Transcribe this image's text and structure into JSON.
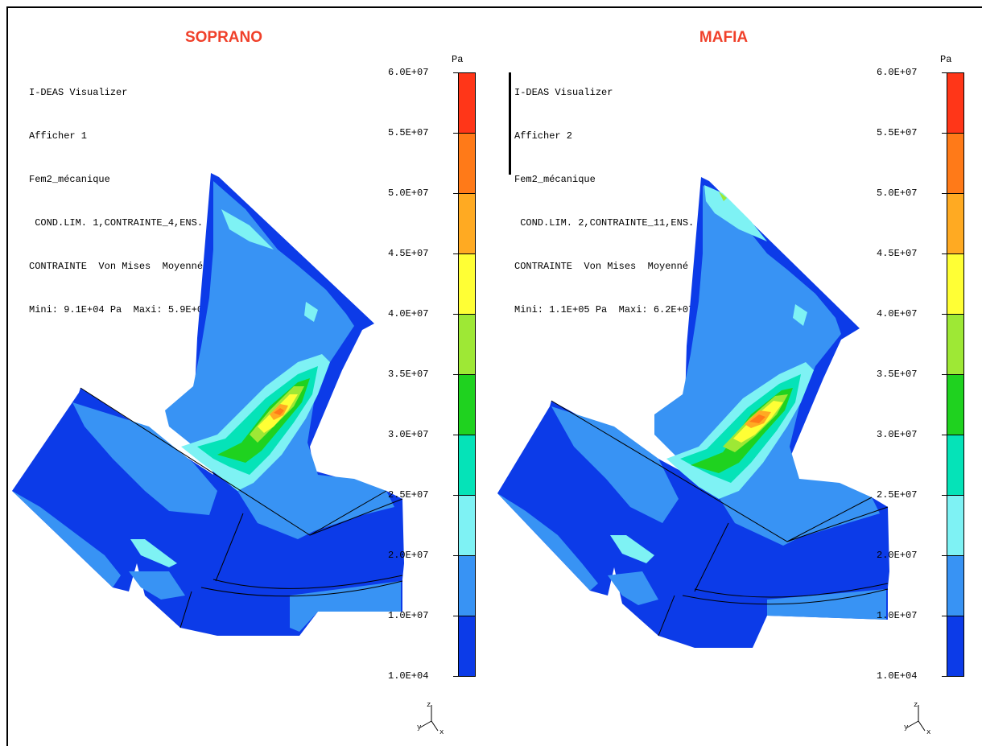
{
  "colors": {
    "title": "#f0402a",
    "contours": [
      "#0c3be8",
      "#3893f4",
      "#7ef2f4",
      "#05e3b8",
      "#1fd21f",
      "#9ee835",
      "#ffff35",
      "#ffaa22",
      "#ff7a18",
      "#ff3618"
    ]
  },
  "legend": {
    "unit": "Pa",
    "ticks": [
      "6.0E+07",
      "5.5E+07",
      "5.0E+07",
      "4.5E+07",
      "4.0E+07",
      "3.5E+07",
      "3.0E+07",
      "2.5E+07",
      "2.0E+07",
      "1.0E+07",
      "1.0E+04"
    ]
  },
  "panels": [
    {
      "title": "SOPRANO",
      "info": [
        "I-DEAS Visualizer",
        "Afficher 1",
        "Fem2_mécanique",
        " COND.LIM. 1,CONTRAINTE_4,ENS. BLOCAGES",
        "CONTRAINTE  Von Mises  Moyenné  Peau sup.",
        "Mini: 9.1E+04 Pa  Maxi: 5.9E+07 Pa"
      ],
      "min_stress": "9.1E+04",
      "max_stress": "5.9E+07",
      "triad": {
        "z": "z",
        "y": "y",
        "x": "x"
      }
    },
    {
      "title": "MAFIA",
      "info": [
        "I-DEAS Visualizer",
        "Afficher 2",
        "Fem2_mécanique",
        " COND.LIM. 2,CONTRAINTE_11,ENS. BLOCAGES",
        "CONTRAINTE  Von Mises  Moyenné  Peau sup.",
        "Mini: 1.1E+05 Pa  Maxi: 6.2E+07 Pa"
      ],
      "min_stress": "1.1E+05",
      "max_stress": "6.2E+07",
      "triad": {
        "z": "z",
        "y": "y",
        "x": "x"
      }
    }
  ]
}
